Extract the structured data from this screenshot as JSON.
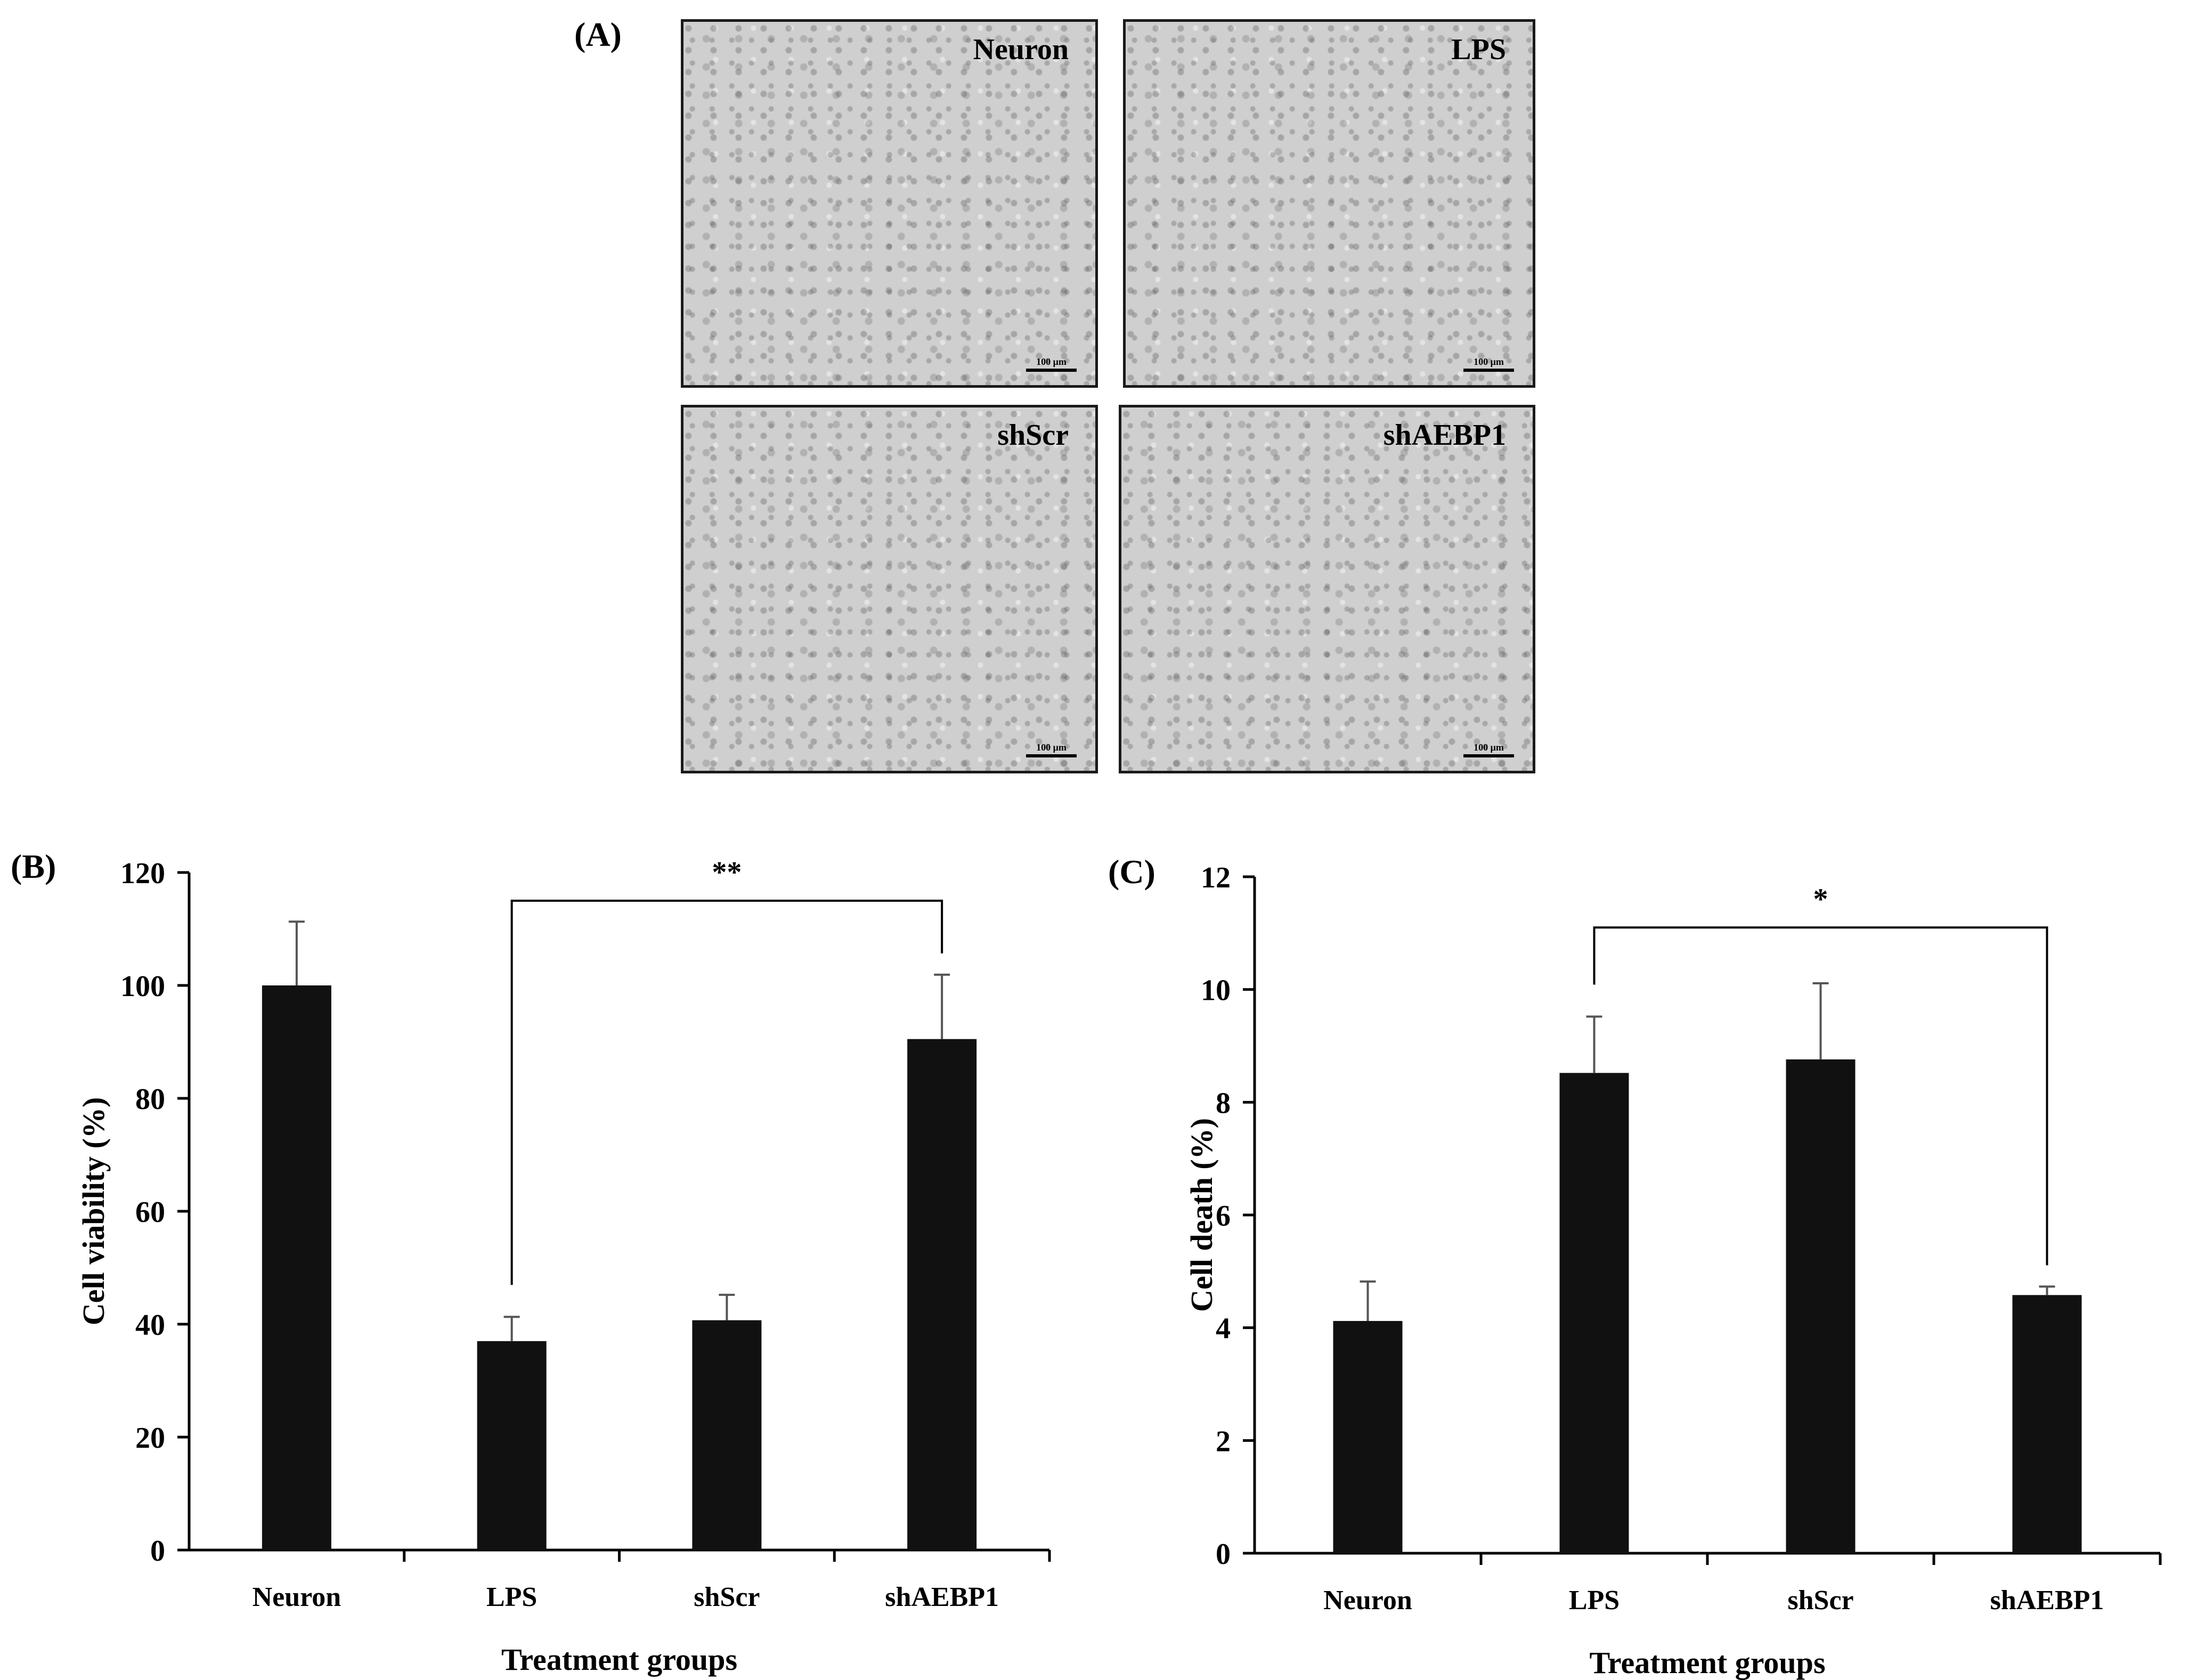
{
  "panel_a": {
    "label": "(A)",
    "images": [
      {
        "label": "Neuron",
        "scale_bar": "100 μm"
      },
      {
        "label": "LPS",
        "scale_bar": "100 μm"
      },
      {
        "label": "shScr",
        "scale_bar": "100 μm"
      },
      {
        "label": "shAEBP1",
        "scale_bar": "100 μm"
      }
    ]
  },
  "chart_data": [
    {
      "panel": "(B)",
      "type": "bar",
      "categories": [
        "Neuron",
        "LPS",
        "shScr",
        "shAEBP1"
      ],
      "values": [
        100,
        37,
        40.7,
        90.5
      ],
      "errors": [
        11.3,
        4.3,
        4.5,
        11.4
      ],
      "xlabel": "Treatment groups",
      "ylabel": "Cell viability (%)",
      "ylim": [
        0,
        120
      ],
      "yticks": [
        0,
        20,
        40,
        60,
        80,
        100,
        120
      ],
      "bar_color": "#111111",
      "significance": {
        "from": "LPS",
        "to": "shAEBP1",
        "label": "**",
        "y": 115
      }
    },
    {
      "panel": "(C)",
      "type": "bar",
      "categories": [
        "Neuron",
        "LPS",
        "shScr",
        "shAEBP1"
      ],
      "values": [
        4.12,
        8.52,
        8.76,
        4.58
      ],
      "errors": [
        0.7,
        1.0,
        1.35,
        0.15
      ],
      "xlabel": "Treatment groups",
      "ylabel": "Cell death (%)",
      "ylim": [
        0,
        12
      ],
      "yticks": [
        0,
        2,
        4,
        6,
        8,
        10,
        12
      ],
      "bar_color": "#111111",
      "significance": {
        "from": "LPS",
        "to": "shAEBP1",
        "label": "*",
        "y": 11.1
      }
    }
  ]
}
